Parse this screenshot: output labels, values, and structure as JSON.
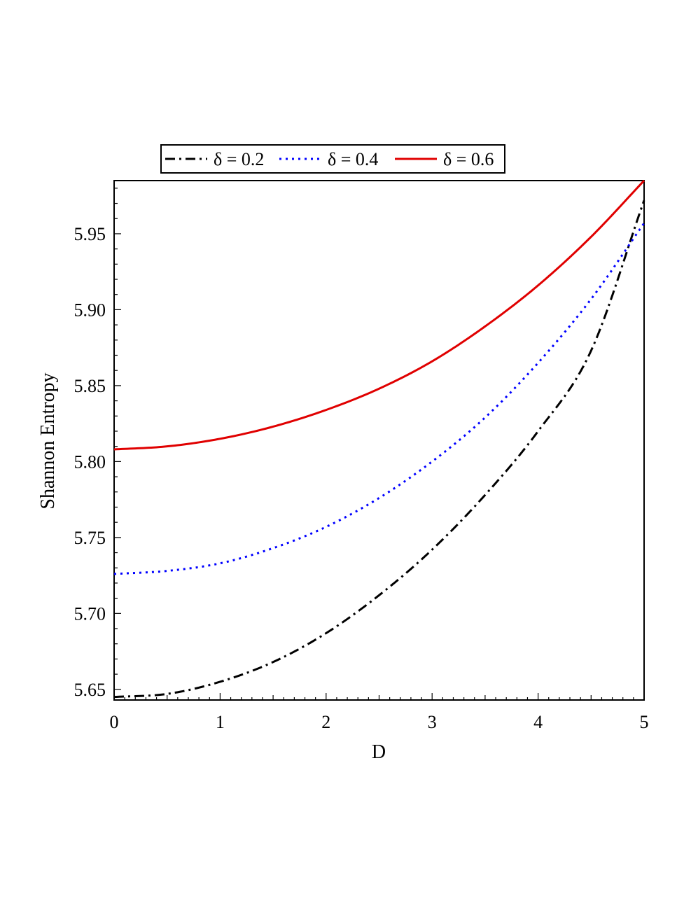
{
  "chart_data": {
    "type": "line",
    "title": "",
    "xlabel": "D",
    "ylabel": "Shannon Entropy",
    "xlim": [
      0,
      5
    ],
    "ylim": [
      5.643,
      5.985
    ],
    "x_ticks": [
      0,
      1,
      2,
      3,
      4,
      5
    ],
    "x_tick_labels": [
      "0",
      "1",
      "2",
      "3",
      "4",
      "5"
    ],
    "y_ticks": [
      5.65,
      5.7,
      5.75,
      5.8,
      5.85,
      5.9,
      5.95
    ],
    "y_tick_labels": [
      "5.65",
      "5.70",
      "5.75",
      "5.80",
      "5.85",
      "5.90",
      "5.95"
    ],
    "grid": false,
    "legend_position": "top",
    "series": [
      {
        "name": "δ = 0.2",
        "color": "#000000",
        "style": "dash-dot",
        "x": [
          0,
          0.5,
          1,
          1.5,
          2,
          2.5,
          3,
          3.5,
          4,
          4.5,
          5
        ],
        "y": [
          5.645,
          5.647,
          5.655,
          5.668,
          5.687,
          5.712,
          5.742,
          5.778,
          5.82,
          5.873,
          5.972
        ]
      },
      {
        "name": "δ = 0.4",
        "color": "#0000ff",
        "style": "dotted",
        "x": [
          0,
          0.5,
          1,
          1.5,
          2,
          2.5,
          3,
          3.5,
          4,
          4.5,
          5
        ],
        "y": [
          5.726,
          5.728,
          5.733,
          5.743,
          5.757,
          5.776,
          5.8,
          5.829,
          5.865,
          5.907,
          5.957
        ]
      },
      {
        "name": "δ = 0.6",
        "color": "#e00000",
        "style": "solid",
        "x": [
          0,
          0.5,
          1,
          1.5,
          2,
          2.5,
          3,
          3.5,
          4,
          4.5,
          5
        ],
        "y": [
          5.808,
          5.81,
          5.815,
          5.823,
          5.834,
          5.848,
          5.866,
          5.889,
          5.916,
          5.948,
          5.985
        ]
      }
    ]
  }
}
